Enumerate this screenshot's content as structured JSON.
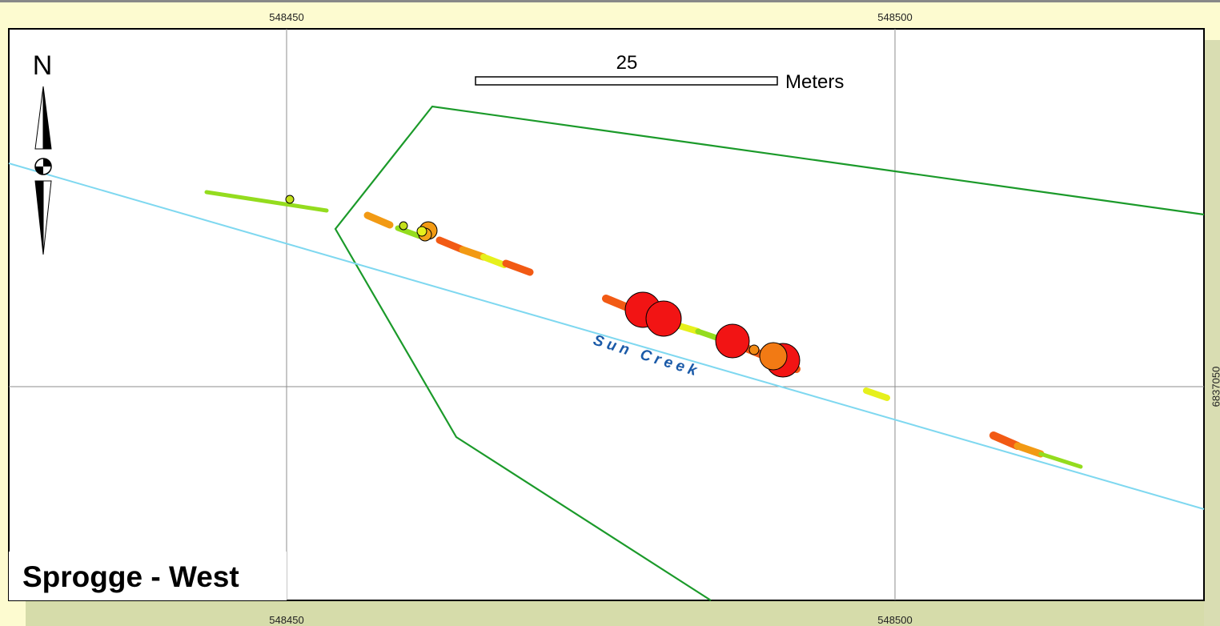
{
  "title": "Sprogge - West",
  "grid": {
    "top_ticks": [
      "548450",
      "548500"
    ],
    "bottom_ticks": [
      "548450",
      "548500"
    ],
    "right_ticks": [
      "6837050"
    ]
  },
  "scale_bar": {
    "value": "25",
    "units": "Meters"
  },
  "north_arrow": {
    "letter": "N",
    "icon": "north-arrow-icon"
  },
  "stream": {
    "name": "Sun Creek",
    "color": "#7fd8f0"
  },
  "boundary": {
    "color": "#1b9a2a"
  },
  "colors": {
    "frame_bg": "#fdfbd0",
    "bottom_band": "#d6dcaa",
    "right_band": "#d9ddb2",
    "green": "#94dc1e",
    "yellow": "#e6f01c",
    "orange": "#f29a14",
    "dark_orange": "#f25a14",
    "red": "#f21414",
    "small_orange": "#f28a14"
  }
}
